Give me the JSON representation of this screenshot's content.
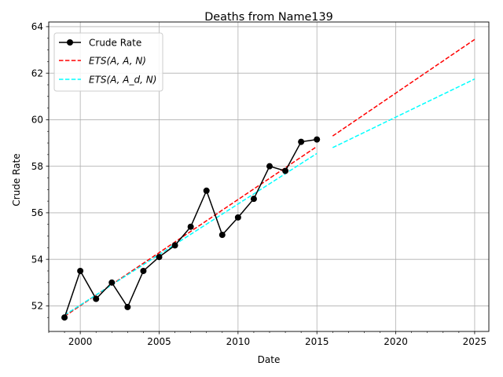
{
  "chart_data": {
    "type": "line",
    "title": "Deaths from Name139",
    "xlabel": "Date",
    "ylabel": "Crude Rate",
    "xlim": [
      1998.0,
      2025.9
    ],
    "ylim": [
      50.9,
      64.2
    ],
    "xticks": [
      2000,
      2005,
      2010,
      2015,
      2020,
      2025
    ],
    "yticks": [
      52,
      54,
      56,
      58,
      60,
      62,
      64
    ],
    "grid": true,
    "legend_position": "top-left",
    "series": [
      {
        "name": "Crude Rate",
        "style": "solid-marker",
        "color": "#000000",
        "points": [
          [
            1999,
            51.5
          ],
          [
            2000,
            53.5
          ],
          [
            2001,
            52.3
          ],
          [
            2002,
            53.0
          ],
          [
            2003,
            51.95
          ],
          [
            2004,
            53.5
          ],
          [
            2005,
            54.1
          ],
          [
            2006,
            54.6
          ],
          [
            2007,
            55.4
          ],
          [
            2008,
            56.95
          ],
          [
            2009,
            55.05
          ],
          [
            2010,
            55.8
          ],
          [
            2011,
            56.6
          ],
          [
            2012,
            58.0
          ],
          [
            2013,
            57.8
          ],
          [
            2014,
            59.05
          ],
          [
            2015,
            59.15
          ]
        ]
      },
      {
        "name": "ETS(A, A, N)",
        "style": "dashed",
        "color": "#ff0000",
        "segments": [
          [
            [
              1999,
              51.55
            ],
            [
              2015,
              58.85
            ]
          ],
          [
            [
              2016,
              59.3
            ],
            [
              2025,
              63.45
            ]
          ]
        ]
      },
      {
        "name": "ETS(A, A_d, N)",
        "style": "dashed",
        "color": "#00ffff",
        "segments": [
          [
            [
              1999,
              51.6
            ],
            [
              2015,
              58.55
            ]
          ],
          [
            [
              2016,
              58.8
            ],
            [
              2025,
              61.75
            ]
          ]
        ]
      }
    ]
  }
}
